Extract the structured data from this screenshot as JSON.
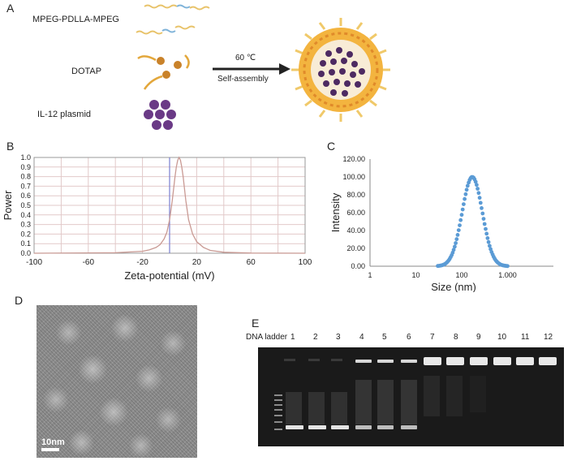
{
  "panel_a": {
    "letter": "A",
    "components": [
      "MPEG-PDLLA-MPEG",
      "DOTAP",
      "IL-12 plasmid"
    ],
    "arrow_top": "60 ℃",
    "arrow_bottom": "Self-assembly"
  },
  "panel_d": {
    "letter": "D",
    "scale_bar": "10nm"
  },
  "panel_e": {
    "letter": "E",
    "lane_labels": [
      "DNA ladder",
      "1",
      "2",
      "3",
      "4",
      "5",
      "6",
      "7",
      "8",
      "9",
      "10",
      "11",
      "12"
    ]
  },
  "chart_data": [
    {
      "panel": "B",
      "type": "line",
      "xlabel": "Zeta-potential (mV)",
      "ylabel": "Power",
      "xlim": [
        -100,
        100
      ],
      "ylim": [
        0,
        1.0
      ],
      "xticks": [
        "-100",
        "-60",
        "-20",
        "20",
        "60",
        "100"
      ],
      "yticks": [
        "0.0",
        "0.1",
        "0.2",
        "0.3",
        "0.4",
        "0.5",
        "0.6",
        "0.7",
        "0.8",
        "0.9",
        "1.0"
      ],
      "grid": true,
      "reference_line_x": 0,
      "x": [
        -100,
        -40,
        -20,
        -15,
        -10,
        -7,
        -4,
        -2,
        0,
        2,
        4,
        5,
        6,
        7,
        8,
        9,
        10,
        12,
        14,
        17,
        20,
        25,
        30,
        40,
        60,
        100
      ],
      "y": [
        0,
        0.005,
        0.02,
        0.035,
        0.06,
        0.09,
        0.15,
        0.22,
        0.35,
        0.55,
        0.8,
        0.9,
        0.97,
        1.0,
        0.97,
        0.9,
        0.8,
        0.55,
        0.35,
        0.2,
        0.12,
        0.06,
        0.03,
        0.01,
        0.002,
        0
      ]
    },
    {
      "panel": "C",
      "type": "scatter",
      "xlabel": "Size (nm)",
      "ylabel": "Intensity",
      "xscale": "log",
      "xlim": [
        1,
        10000
      ],
      "ylim": [
        0,
        120
      ],
      "xticks": [
        "1",
        "10",
        "100",
        "1.000"
      ],
      "yticks": [
        "0.00",
        "20.00",
        "40.00",
        "60.00",
        "80.00",
        "100.00",
        "120.00"
      ],
      "grid": false,
      "peak_x": 170,
      "peak_y": 100,
      "x_range": [
        30,
        1000
      ]
    }
  ]
}
